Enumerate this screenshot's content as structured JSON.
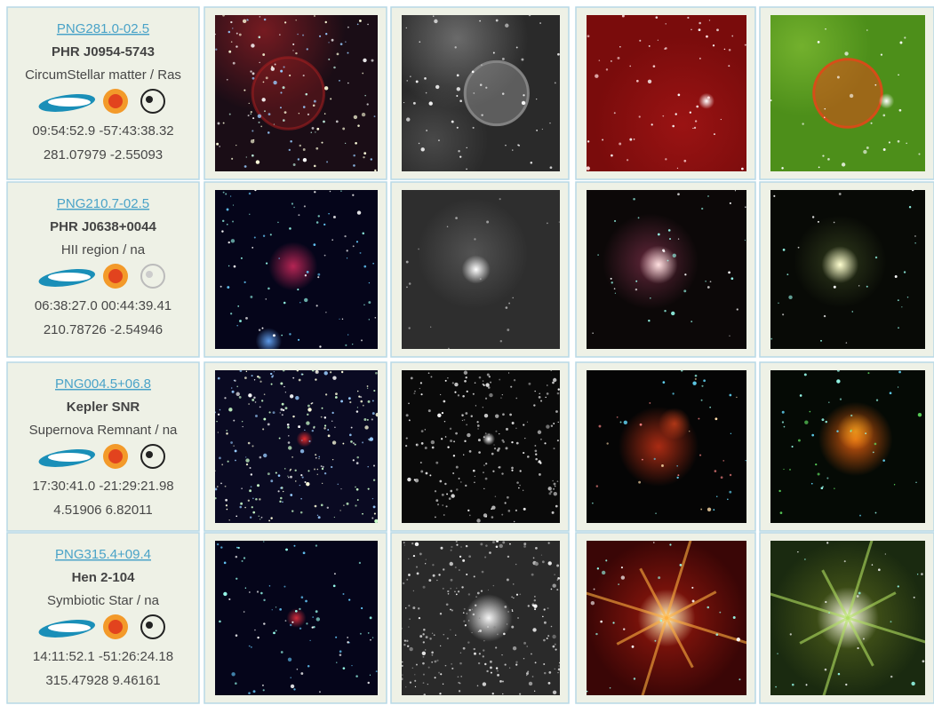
{
  "rows": [
    {
      "id": "PNG281.0-02.5",
      "name": "PHR J0954-5743",
      "type": "CircumStellar matter / Ras",
      "radec": "09:54:52.9 -57:43:38.32",
      "galactic": "281.07979 -2.55093"
    },
    {
      "id": "PNG210.7-02.5",
      "name": "PHR J0638+0044",
      "type": "HII region / na",
      "radec": "06:38:27.0 00:44:39.41",
      "galactic": "210.78726 -2.54946"
    },
    {
      "id": "PNG004.5+06.8",
      "name": "Kepler SNR",
      "type": "Supernova Remnant / na",
      "radec": "17:30:41.0 -21:29:21.98",
      "galactic": "4.51906 6.82011"
    },
    {
      "id": "PNG315.4+09.4",
      "name": "Hen 2-104",
      "type": "Symbiotic Star / na",
      "radec": "14:11:52.1 -51:26:24.18",
      "galactic": "315.47928 9.46161"
    }
  ]
}
